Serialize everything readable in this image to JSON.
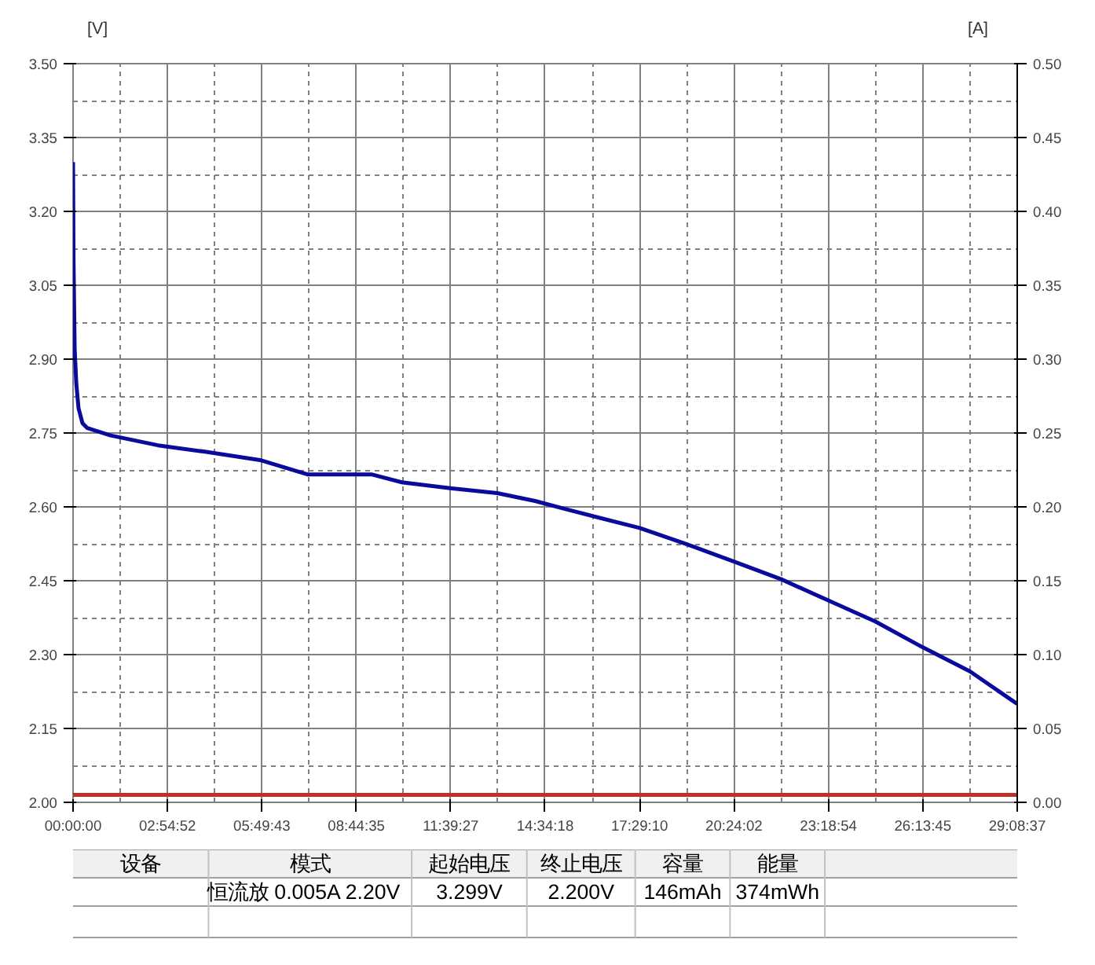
{
  "chart_data": {
    "type": "line",
    "ylabel": "[V]",
    "y2label": "[A]",
    "x": [
      0,
      0.015,
      0.05,
      0.1,
      0.17,
      0.29,
      0.44,
      0.68,
      1.16,
      2.62,
      4.07,
      5.77,
      7.23,
      9.21,
      10.14,
      11.64,
      13.09,
      14.26,
      15.23,
      17.49,
      18.95,
      20.4,
      21.86,
      23.31,
      24.77,
      26.22,
      27.68,
      29.14
    ],
    "series": [
      {
        "color": "#0a0a9c",
        "axis": "y",
        "values": [
          3.3,
          3.1,
          2.92,
          2.85,
          2.8,
          2.77,
          2.76,
          2.755,
          2.745,
          2.725,
          2.712,
          2.695,
          2.666,
          2.666,
          2.65,
          2.638,
          2.628,
          2.612,
          2.595,
          2.557,
          2.524,
          2.489,
          2.453,
          2.41,
          2.367,
          2.315,
          2.266,
          2.2
        ]
      },
      {
        "color": "#c0302a",
        "axis": "y2",
        "x": [
          0,
          29.14
        ],
        "values": [
          0.005,
          0.005
        ]
      }
    ],
    "xlim": [
      0,
      29.1436
    ],
    "xticks": [
      {
        "value": 0,
        "label": "00:00:00"
      },
      {
        "value": 2.9144,
        "label": "02:54:52"
      },
      {
        "value": 5.8286,
        "label": "05:49:43"
      },
      {
        "value": 8.7431,
        "label": "08:44:35"
      },
      {
        "value": 11.6575,
        "label": "11:39:27"
      },
      {
        "value": 14.5717,
        "label": "14:34:18"
      },
      {
        "value": 17.4861,
        "label": "17:29:10"
      },
      {
        "value": 20.4006,
        "label": "20:24:02"
      },
      {
        "value": 23.315,
        "label": "23:18:54"
      },
      {
        "value": 26.2292,
        "label": "26:13:45"
      },
      {
        "value": 29.1436,
        "label": "29:08:37"
      }
    ],
    "ylim": [
      2.0,
      3.5
    ],
    "yticks": [
      {
        "value": 2.0,
        "label": "2.00"
      },
      2.15,
      {
        "value": 2.3,
        "label": "2.30"
      },
      2.45,
      {
        "value": 2.6,
        "label": "2.60"
      },
      2.75,
      {
        "value": 2.9,
        "label": "2.90"
      },
      3.05,
      {
        "value": 3.2,
        "label": "3.20"
      },
      3.35,
      {
        "value": 3.5,
        "label": "3.50"
      }
    ],
    "y2lim": [
      0,
      0.5
    ],
    "y2ticks": [
      {
        "value": 0,
        "label": "0.00"
      },
      0.05,
      {
        "value": 0.1,
        "label": "0.10"
      },
      0.15,
      {
        "value": 0.2,
        "label": "0.20"
      },
      0.25,
      {
        "value": 0.3,
        "label": "0.30"
      },
      0.35,
      {
        "value": 0.4,
        "label": "0.40"
      },
      0.45,
      {
        "value": 0.5,
        "label": "0.50"
      }
    ],
    "grid": true,
    "annotations": [
      "设备",
      "模式",
      "起始电压",
      "终止电压",
      "容量",
      "能量",
      "恒流放  0.005A  2.20V",
      "3.299V",
      "2.200V",
      "146mAh",
      "374mWh"
    ]
  }
}
